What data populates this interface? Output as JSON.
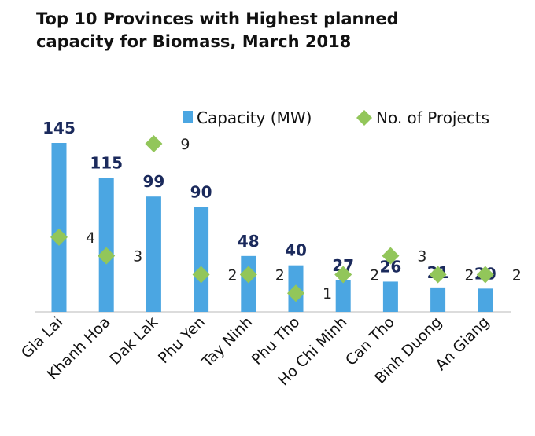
{
  "chart_data": {
    "type": "bar",
    "title_lines": [
      "Top 10 Provinces with Highest planned",
      "capacity for Biomass, March 2018"
    ],
    "categories": [
      "Gia Lai",
      "Khanh Hoa",
      "Dak Lak",
      "Phu Yen",
      "Tay Ninh",
      "Phu Tho",
      "Ho Chi Minh",
      "Can Tho",
      "Binh Duong",
      "An Giang"
    ],
    "series": [
      {
        "name": "Capacity (MW)",
        "type": "bar",
        "axis": "primary",
        "color": "#4ba6e2",
        "label_color": "#1b2a5c",
        "values": [
          145,
          115,
          99,
          90,
          48,
          40,
          27,
          26,
          21,
          20
        ]
      },
      {
        "name": "No. of Projects",
        "type": "scatter",
        "marker": "diamond",
        "axis": "secondary",
        "color": "#92c65a",
        "label_color": "#222222",
        "values": [
          4,
          3,
          9,
          2,
          2,
          1,
          2,
          3,
          2,
          2
        ]
      }
    ],
    "ylim": [
      0,
      145
    ],
    "y2lim": [
      0,
      9
    ],
    "legend": "top-right",
    "grid": false
  }
}
